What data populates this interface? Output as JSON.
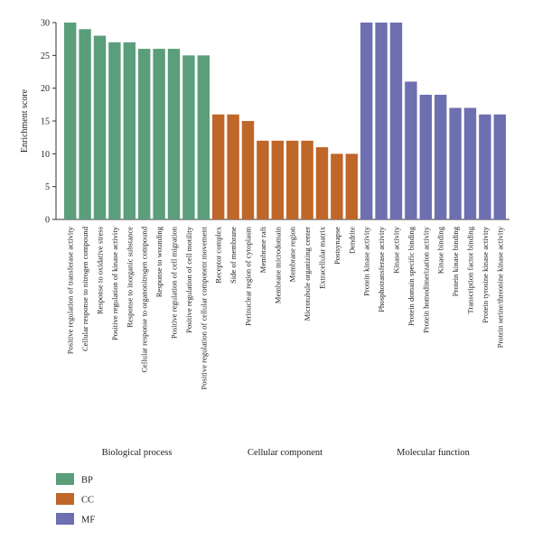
{
  "chart_data": {
    "type": "bar",
    "ylabel": "Enrichment score",
    "ylim": [
      0,
      30
    ],
    "yticks": [
      0,
      5,
      10,
      15,
      20,
      25,
      30
    ],
    "grid": false,
    "groups": [
      {
        "key": "BP",
        "name": "Biological process",
        "color": "#5b9e7a",
        "categories": [
          "Positive regulation of transferase activity",
          "Cellular response to nitrogen compound",
          "Response to oxidative stress",
          "Positive regulation of kinase activity",
          "Response to inorganic substance",
          "Cellular response to organonitrogen compound",
          "Response to wounding",
          "Positive regulation of cell migration",
          "Positive regulation of cell motility",
          "Positive regulation of cellular component movement"
        ],
        "values": [
          30,
          29,
          28,
          27,
          27,
          26,
          26,
          26,
          25,
          25
        ]
      },
      {
        "key": "CC",
        "name": "Cellular component",
        "color": "#bf6629",
        "categories": [
          "Receptor complex",
          "Side of membrane",
          "Perinuclear region of cytoplasm",
          "Membrane raft",
          "Membrane microdomain",
          "Membrane region",
          "Microtubule organizing center",
          "Extracellular matrix",
          "Postsynapse",
          "Dendrite"
        ],
        "values": [
          16,
          16,
          15,
          12,
          12,
          12,
          12,
          11,
          10,
          10
        ]
      },
      {
        "key": "MF",
        "name": "Molecular function",
        "color": "#6d6fb0",
        "categories": [
          "Protein kinase activity",
          "Phosphotransferase activity",
          "Kinase activity",
          "Protein domain specific binding",
          "Protein homodimerization activity",
          "Kinase binding",
          "Protein kinase binding",
          "Transcription factor binding",
          "Protein tyrosine kinase activity",
          "Protein serine/threonine kinase activity"
        ],
        "values": [
          30,
          30,
          30,
          21,
          19,
          19,
          17,
          17,
          16,
          16
        ]
      }
    ],
    "legend": {
      "placement": "bottom-left",
      "entries": [
        {
          "label": "BP",
          "color": "#5b9e7a"
        },
        {
          "label": "CC",
          "color": "#bf6629"
        },
        {
          "label": "MF",
          "color": "#6d6fb0"
        }
      ]
    }
  }
}
